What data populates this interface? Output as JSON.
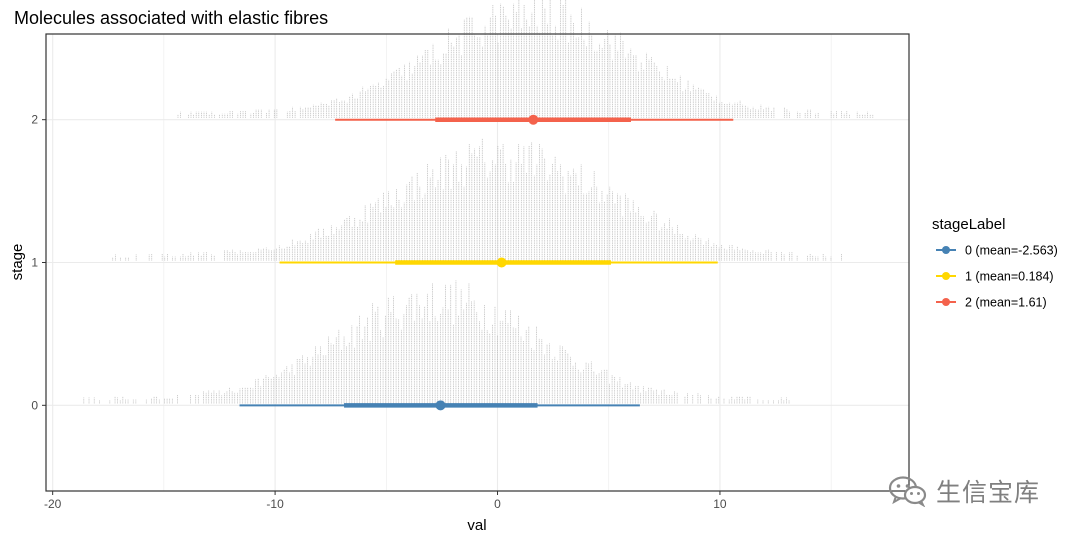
{
  "chart_data": {
    "type": "dotplot",
    "title": "Molecules associated with elastic fibres",
    "xlabel": "val",
    "ylabel": "stage",
    "xlim": [
      -20.3,
      18.5
    ],
    "ylim": [
      -0.6,
      2.6
    ],
    "x_ticks": [
      -20,
      -10,
      0,
      10
    ],
    "y_ticks": [
      0,
      1,
      2
    ],
    "grid": true,
    "legend": {
      "title": "stageLabel",
      "position": "right"
    },
    "series": [
      {
        "name": "0 (mean=-2.563)",
        "stage": 0,
        "color": "#4682b4",
        "mean": -2.563,
        "inner_interval": [
          -6.9,
          1.8
        ],
        "outer_interval": [
          -11.6,
          6.4
        ],
        "data_range": [
          -18.6,
          13.2
        ]
      },
      {
        "name": "1 (mean=0.184)",
        "stage": 1,
        "color": "#ffd700",
        "mean": 0.184,
        "inner_interval": [
          -4.6,
          5.1
        ],
        "outer_interval": [
          -9.8,
          9.9
        ],
        "data_range": [
          -17.3,
          15.6
        ]
      },
      {
        "name": "2 (mean=1.61)",
        "stage": 2,
        "color": "#f4624c",
        "mean": 1.61,
        "inner_interval": [
          -2.8,
          6.0
        ],
        "outer_interval": [
          -7.3,
          10.6
        ],
        "data_range": [
          -14.6,
          16.9
        ]
      }
    ]
  },
  "watermark": {
    "text": "生信宝库",
    "icon": "wechat-icon"
  },
  "colors": {
    "dots": "#b0b0b0",
    "grid": "#ebebeb",
    "panel_border": "#333333"
  }
}
